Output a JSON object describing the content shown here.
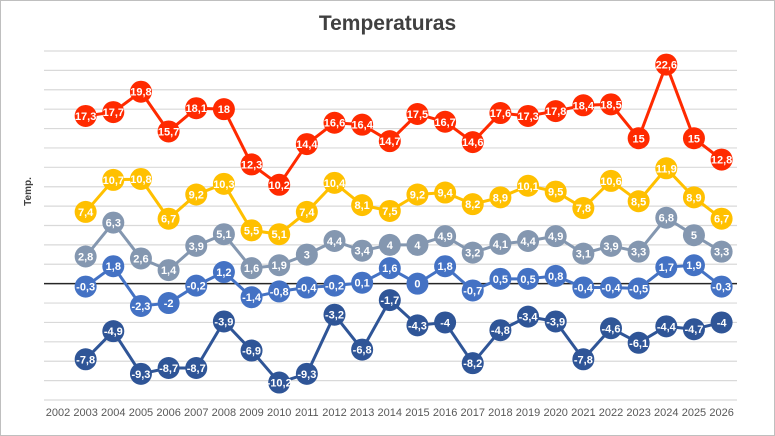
{
  "chart_data": {
    "type": "line",
    "title": "Temperaturas",
    "xlabel": "",
    "ylabel": "Temp.",
    "categories": [
      "2002",
      "2003",
      "2004",
      "2005",
      "2006",
      "2007",
      "2008",
      "2009",
      "2010",
      "2011",
      "2012",
      "2013",
      "2014",
      "2015",
      "2016",
      "2017",
      "2018",
      "2019",
      "2020",
      "2021",
      "2022",
      "2023",
      "2024",
      "2025",
      "2026"
    ],
    "ylim": [
      -12,
      24
    ],
    "ytick_step": 2,
    "grid": true,
    "legend": "none",
    "data_labels": true,
    "series": [
      {
        "color": "#FF2A00",
        "values": [
          null,
          17.3,
          17.7,
          19.8,
          15.7,
          18.1,
          18,
          12.3,
          10.2,
          14.4,
          16.6,
          16.4,
          14.7,
          17.5,
          16.7,
          14.6,
          17.6,
          17.3,
          17.8,
          18.4,
          18.5,
          15,
          22.6,
          15,
          12.8
        ]
      },
      {
        "color": "#FFC000",
        "values": [
          null,
          7.4,
          10.7,
          10.8,
          6.7,
          9.2,
          10.3,
          5.5,
          5.1,
          7.4,
          10.4,
          8.1,
          7.5,
          9.2,
          9.4,
          8.2,
          8.9,
          10.1,
          9.5,
          7.8,
          10.6,
          8.5,
          11.9,
          8.9,
          6.7
        ]
      },
      {
        "color": "#8497B0",
        "values": [
          null,
          2.8,
          6.3,
          2.6,
          1.4,
          3.9,
          5.1,
          1.6,
          1.9,
          3,
          4.4,
          3.4,
          4,
          4,
          4.9,
          3.2,
          4.1,
          4.4,
          4.9,
          3.1,
          3.9,
          3.3,
          6.8,
          5,
          3.3
        ]
      },
      {
        "color": "#4472C4",
        "values": [
          null,
          -0.3,
          1.8,
          -2.3,
          -2,
          -0.2,
          1.2,
          -1.4,
          -0.8,
          -0.4,
          -0.2,
          0.1,
          1.6,
          0,
          1.8,
          -0.7,
          0.5,
          0.5,
          0.8,
          -0.4,
          -0.4,
          -0.5,
          1.7,
          1.9,
          -0.3
        ]
      },
      {
        "color": "#2F5597",
        "values": [
          null,
          -7.8,
          -4.9,
          -9.3,
          -8.7,
          -8.7,
          -3.9,
          -6.9,
          -10.2,
          -9.3,
          -3.2,
          -6.8,
          -1.7,
          -4.3,
          -4,
          -8.2,
          -4.8,
          -3.4,
          -3.9,
          -7.8,
          -4.6,
          -6.1,
          -4.4,
          -4.7,
          -4
        ]
      }
    ]
  }
}
